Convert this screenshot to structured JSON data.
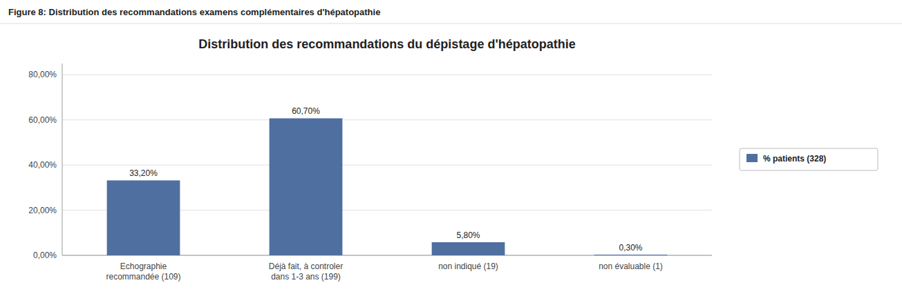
{
  "chart_data": {
    "type": "bar",
    "title": "Distribution des recommandations du dépistage d'hépatopathie",
    "subtitle": "Figure 8: Distribution des recommandations examens complémentaires d'hépatopathie",
    "categories": [
      "Echographie\nrecommandée (109)",
      "Déjà fait, à controler\ndans 1-3 ans (199)",
      "non indiqué (19)",
      "non évaluable (1)"
    ],
    "series": [
      {
        "name": "% patients (328)",
        "color": "#4F6FA0",
        "values": [
          33.2,
          60.7,
          5.8,
          0.3
        ],
        "value_labels": [
          "33,20%",
          "60,70%",
          "5,80%",
          "0,30%"
        ]
      }
    ],
    "ylim": [
      0,
      85
    ],
    "yticks": [
      {
        "value": 0.0,
        "label": "0,00%"
      },
      {
        "value": 20.0,
        "label": "20,00%"
      },
      {
        "value": 40.0,
        "label": "40,00%"
      },
      {
        "value": 60.0,
        "label": "60,00%"
      },
      {
        "value": 80.0,
        "label": "80,00%"
      }
    ],
    "grid": true,
    "data_labels": true,
    "legend": "right"
  }
}
